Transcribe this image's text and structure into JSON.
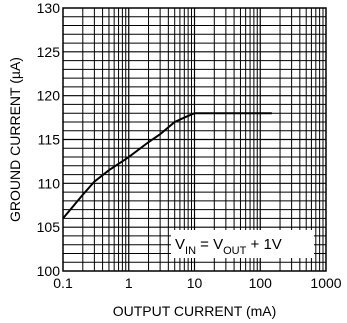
{
  "chart_data": {
    "type": "line",
    "title": "",
    "xlabel": "OUTPUT CURRENT (mA)",
    "ylabel": "GROUND CURRENT (µA)",
    "x_scale": "log",
    "xlim": [
      0.1,
      1000
    ],
    "ylim": [
      100,
      130
    ],
    "x_tick_labels": [
      "0.1",
      "1",
      "10",
      "100",
      "1000"
    ],
    "y_tick_labels": [
      "100",
      "105",
      "110",
      "115",
      "120",
      "125",
      "130"
    ],
    "grid": true,
    "annotation": {
      "v_main": "V",
      "v_in_sub": "IN",
      "equals": " = V",
      "v_out_sub": "OUT",
      "tail": " + 1V"
    },
    "series": [
      {
        "x": [
          0.1,
          0.2,
          0.3,
          0.5,
          1,
          2,
          3,
          5,
          7,
          10,
          20,
          50,
          100,
          150
        ],
        "y": [
          106,
          108.7,
          110.2,
          111.5,
          113,
          114.7,
          115.6,
          117,
          117.5,
          118,
          118,
          118,
          118,
          118
        ]
      }
    ]
  }
}
